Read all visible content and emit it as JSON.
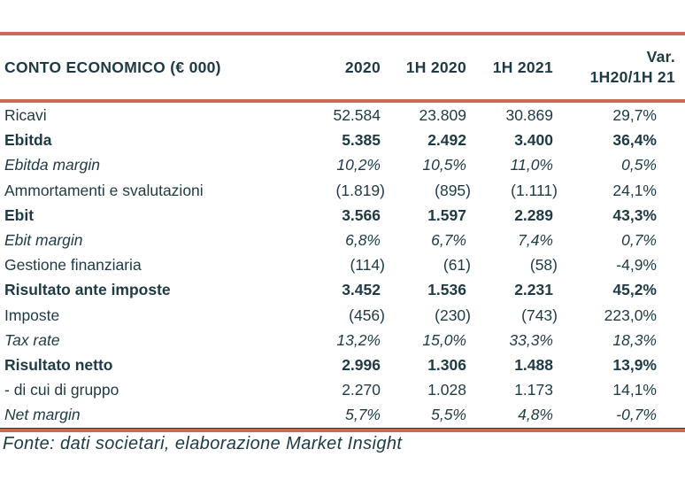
{
  "colors": {
    "accent": "#c96a57",
    "text": "#1d3a45"
  },
  "table": {
    "title": "CONTO ECONOMICO (€ 000)",
    "columns": [
      "2020",
      "1H 2020",
      "1H 2021"
    ],
    "var_column": {
      "line1": "Var.",
      "line2": "1H20/1H 21"
    },
    "rows": [
      {
        "label": "Ricavi",
        "style": "normal",
        "values": [
          "52.584",
          "23.809",
          "30.869",
          "29,7%"
        ]
      },
      {
        "label": "Ebitda",
        "style": "bold",
        "values": [
          "5.385",
          "2.492",
          "3.400",
          "36,4%"
        ]
      },
      {
        "label": "Ebitda margin",
        "style": "italic",
        "values": [
          "10,2%",
          "10,5%",
          "11,0%",
          "0,5%"
        ]
      },
      {
        "label": "Ammortamenti e svalutazioni",
        "style": "normal",
        "values": [
          "(1.819)",
          "(895)",
          "(1.111)",
          "24,1%"
        ]
      },
      {
        "label": "Ebit",
        "style": "bold",
        "values": [
          "3.566",
          "1.597",
          "2.289",
          "43,3%"
        ]
      },
      {
        "label": "Ebit margin",
        "style": "italic",
        "values": [
          "6,8%",
          "6,7%",
          "7,4%",
          "0,7%"
        ]
      },
      {
        "label": "Gestione finanziaria",
        "style": "normal",
        "values": [
          "(114)",
          "(61)",
          "(58)",
          "-4,9%"
        ]
      },
      {
        "label": "Risultato ante imposte",
        "style": "bold",
        "values": [
          "3.452",
          "1.536",
          "2.231",
          "45,2%"
        ]
      },
      {
        "label": "Imposte",
        "style": "normal",
        "values": [
          "(456)",
          "(230)",
          "(743)",
          "223,0%"
        ]
      },
      {
        "label": "Tax rate",
        "style": "italic",
        "values": [
          "13,2%",
          "15,0%",
          "33,3%",
          "18,3%"
        ]
      },
      {
        "label": "Risultato netto",
        "style": "bold",
        "values": [
          "2.996",
          "1.306",
          "1.488",
          "13,9%"
        ]
      },
      {
        "label": "- di cui di gruppo",
        "style": "normal",
        "values": [
          "2.270",
          "1.028",
          "1.173",
          "14,1%"
        ]
      },
      {
        "label": "Net margin",
        "style": "italic",
        "values": [
          "5,7%",
          "5,5%",
          "4,8%",
          "-0,7%"
        ]
      }
    ],
    "footer": "Fonte: dati societari, elaborazione Market Insight"
  }
}
